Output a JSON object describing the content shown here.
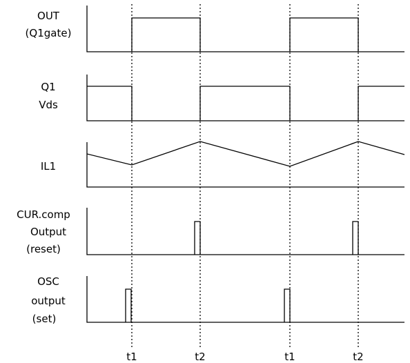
{
  "signals": [
    {
      "id": "out",
      "label_lines": [
        "OUT",
        "(Q1gate)"
      ]
    },
    {
      "id": "vds",
      "label_lines": [
        "Q1",
        "Vds"
      ]
    },
    {
      "id": "il1",
      "label_lines": [
        "IL1"
      ]
    },
    {
      "id": "cur",
      "label_lines": [
        "CUR.comp",
        "Output",
        "(reset)"
      ]
    },
    {
      "id": "osc",
      "label_lines": [
        "OSC",
        "output",
        "(set)"
      ]
    }
  ],
  "time_markers": [
    {
      "label": "t1"
    },
    {
      "label": "t2"
    },
    {
      "label": "t1"
    },
    {
      "label": "t2"
    }
  ]
}
